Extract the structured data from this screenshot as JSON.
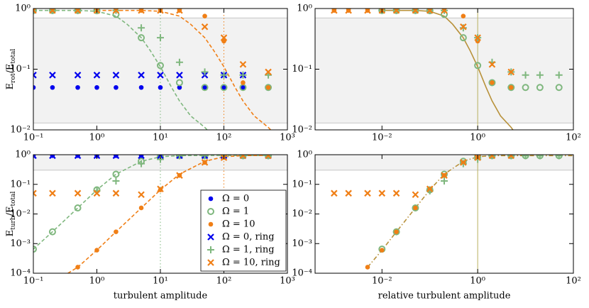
{
  "chart_data": [
    {
      "type": "scatter",
      "log": true,
      "xlim": [
        0.1,
        1000
      ],
      "ylim": [
        0.01,
        1
      ],
      "xticks": [
        {
          "value": 0.1,
          "label": "10⁻¹"
        },
        {
          "value": 1,
          "label": "10⁰"
        },
        {
          "value": 10,
          "label": "10¹"
        },
        {
          "value": 100,
          "label": "10²"
        },
        {
          "value": 1000,
          "label": "10³"
        }
      ],
      "yticks": [
        {
          "value": 0.01,
          "label": "10⁻²"
        },
        {
          "value": 0.1,
          "label": "10⁻¹"
        },
        {
          "value": 1,
          "label": "10⁰"
        }
      ],
      "ylabel": [
        "E",
        "rot",
        "/E",
        "total"
      ],
      "shade": [
        0.013,
        0.7
      ],
      "vlines": [
        {
          "value": 10,
          "color": "#7fb77e",
          "style": "dotted"
        },
        {
          "value": 100,
          "color": "#f07f16",
          "style": "dotted"
        }
      ],
      "series": [
        {
          "marker": "dot",
          "color": "#0000ee",
          "x": [
            0.1,
            0.2,
            0.5,
            1,
            2,
            5,
            10,
            20,
            50,
            100,
            200
          ],
          "values": [
            0.05,
            0.05,
            0.05,
            0.05,
            0.05,
            0.05,
            0.05,
            0.05,
            0.05,
            0.05,
            0.05
          ]
        },
        {
          "marker": "circle",
          "color": "#7fb77e",
          "x": [
            0.1,
            0.2,
            0.5,
            1,
            2,
            5,
            10,
            20,
            50,
            100,
            200,
            500
          ],
          "values": [
            0.93,
            0.93,
            0.93,
            0.92,
            0.8,
            0.33,
            0.115,
            0.06,
            0.05,
            0.05,
            0.05,
            0.05
          ]
        },
        {
          "marker": "dot",
          "color": "#f07f16",
          "x": [
            0.1,
            0.2,
            0.5,
            1,
            2,
            5,
            10,
            20,
            50,
            100,
            200,
            500
          ],
          "values": [
            0.93,
            0.93,
            0.93,
            0.93,
            0.93,
            0.93,
            0.93,
            0.93,
            0.75,
            0.29,
            0.06,
            0.05
          ]
        },
        {
          "marker": "x",
          "color": "#0000ee",
          "x": [
            0.1,
            0.2,
            0.5,
            1,
            2,
            5,
            10,
            20,
            50,
            100,
            200
          ],
          "values": [
            0.08,
            0.08,
            0.08,
            0.08,
            0.08,
            0.08,
            0.08,
            0.08,
            0.08,
            0.08,
            0.08
          ]
        },
        {
          "marker": "plus",
          "color": "#7fb77e",
          "x": [
            0.1,
            0.2,
            0.5,
            1,
            2,
            5,
            10,
            20,
            50,
            100,
            200,
            500
          ],
          "values": [
            0.93,
            0.93,
            0.93,
            0.93,
            0.93,
            0.48,
            0.33,
            0.13,
            0.09,
            0.08,
            0.08,
            0.08
          ]
        },
        {
          "marker": "x",
          "color": "#f07f16",
          "x": [
            0.1,
            0.2,
            0.5,
            1,
            2,
            5,
            10,
            20,
            50,
            100,
            200,
            500
          ],
          "values": [
            0.93,
            0.93,
            0.93,
            0.93,
            0.93,
            0.93,
            0.93,
            0.93,
            0.5,
            0.33,
            0.12,
            0.09
          ]
        }
      ],
      "fits": [
        {
          "color": "#7fb77e",
          "style": "dashed",
          "x": [
            0.1,
            0.5,
            1,
            2,
            3,
            5,
            7,
            10,
            15,
            20,
            30,
            50,
            60
          ],
          "values": [
            0.93,
            0.93,
            0.9,
            0.75,
            0.55,
            0.33,
            0.2,
            0.11,
            0.05,
            0.03,
            0.017,
            0.011,
            0.009
          ]
        },
        {
          "color": "#f07f16",
          "style": "dashed",
          "x": [
            1,
            5,
            10,
            20,
            30,
            50,
            70,
            100,
            150,
            200,
            300,
            500,
            600
          ],
          "values": [
            0.93,
            0.93,
            0.9,
            0.75,
            0.55,
            0.33,
            0.2,
            0.11,
            0.05,
            0.03,
            0.017,
            0.011,
            0.009
          ]
        }
      ]
    },
    {
      "type": "scatter",
      "log": true,
      "xlim": [
        0.0004,
        100
      ],
      "ylim": [
        0.01,
        1
      ],
      "xticks": [
        {
          "value": 0.01,
          "label": "10⁻²"
        },
        {
          "value": 1,
          "label": "10⁰"
        },
        {
          "value": 100,
          "label": "10²"
        }
      ],
      "yticks": [
        {
          "value": 0.01,
          "label": "10⁻²"
        },
        {
          "value": 0.1,
          "label": "10⁻¹"
        },
        {
          "value": 1,
          "label": "10⁰"
        }
      ],
      "shade": [
        0.013,
        0.7
      ],
      "vlines": [
        {
          "value": 1,
          "color": "#b8b060",
          "style": "solid"
        }
      ],
      "series": [
        {
          "marker": "circle",
          "color": "#7fb77e",
          "x": [
            0.01,
            0.02,
            0.05,
            0.1,
            0.2,
            0.5,
            1,
            2,
            5,
            10,
            20,
            50
          ],
          "values": [
            0.93,
            0.93,
            0.93,
            0.92,
            0.8,
            0.33,
            0.115,
            0.06,
            0.05,
            0.05,
            0.05,
            0.05
          ]
        },
        {
          "marker": "dot",
          "color": "#f07f16",
          "x": [
            0.001,
            0.002,
            0.005,
            0.01,
            0.02,
            0.05,
            0.1,
            0.2,
            0.5,
            1,
            2,
            5
          ],
          "values": [
            0.93,
            0.93,
            0.93,
            0.93,
            0.93,
            0.93,
            0.93,
            0.93,
            0.75,
            0.29,
            0.06,
            0.05
          ]
        },
        {
          "marker": "plus",
          "color": "#7fb77e",
          "x": [
            0.01,
            0.02,
            0.05,
            0.1,
            0.2,
            0.5,
            1,
            2,
            5,
            10,
            20,
            50
          ],
          "values": [
            0.93,
            0.93,
            0.93,
            0.93,
            0.93,
            0.48,
            0.33,
            0.13,
            0.09,
            0.08,
            0.08,
            0.08
          ]
        },
        {
          "marker": "x",
          "color": "#f07f16",
          "x": [
            0.001,
            0.002,
            0.005,
            0.01,
            0.02,
            0.05,
            0.1,
            0.2,
            0.5,
            1,
            2,
            5
          ],
          "values": [
            0.93,
            0.93,
            0.93,
            0.93,
            0.93,
            0.93,
            0.93,
            0.93,
            0.5,
            0.33,
            0.12,
            0.09
          ]
        }
      ],
      "fits": [
        {
          "color": "#b8913a",
          "style": "solid",
          "x": [
            0.01,
            0.05,
            0.1,
            0.2,
            0.3,
            0.5,
            0.7,
            1,
            1.5,
            2,
            3,
            5,
            6
          ],
          "values": [
            0.93,
            0.93,
            0.9,
            0.75,
            0.55,
            0.33,
            0.2,
            0.11,
            0.05,
            0.03,
            0.017,
            0.011,
            0.009
          ]
        }
      ]
    },
    {
      "type": "scatter",
      "log": true,
      "xlim": [
        0.1,
        1000
      ],
      "ylim": [
        0.0001,
        1
      ],
      "xticks": [
        {
          "value": 0.1,
          "label": "10⁻¹"
        },
        {
          "value": 1,
          "label": "10⁰"
        },
        {
          "value": 10,
          "label": "10¹"
        },
        {
          "value": 100,
          "label": "10²"
        },
        {
          "value": 1000,
          "label": "10³"
        }
      ],
      "yticks": [
        {
          "value": 0.0001,
          "label": "10⁻⁴"
        },
        {
          "value": 0.001,
          "label": "10⁻³"
        },
        {
          "value": 0.01,
          "label": "10⁻²"
        },
        {
          "value": 0.1,
          "label": "10⁻¹"
        },
        {
          "value": 1,
          "label": "10⁰"
        }
      ],
      "xlabel": "turbulent amplitude",
      "ylabel": [
        "E",
        "turb",
        "/E",
        "total"
      ],
      "legend": "lower right",
      "shade": [
        0.3,
        1
      ],
      "vlines": [
        {
          "value": 10,
          "color": "#7fb77e",
          "style": "dotted"
        },
        {
          "value": 100,
          "color": "#f07f16",
          "style": "dotted"
        }
      ],
      "series": [
        {
          "name": "Ω = 0",
          "marker": "dot",
          "color": "#0000ee",
          "x": [
            0.1,
            0.2,
            0.5,
            1,
            2,
            5,
            10,
            20,
            50,
            100,
            200,
            500
          ],
          "values": [
            0.93,
            0.93,
            0.93,
            0.93,
            0.93,
            0.93,
            0.93,
            0.93,
            0.93,
            0.93,
            0.93,
            0.93
          ]
        },
        {
          "name": "Ω = 1",
          "marker": "circle",
          "color": "#7fb77e",
          "x": [
            0.1,
            0.2,
            0.5,
            1,
            2,
            5,
            10,
            20,
            50,
            100,
            200,
            500
          ],
          "values": [
            0.00065,
            0.0025,
            0.016,
            0.065,
            0.22,
            0.6,
            0.85,
            0.93,
            0.93,
            0.93,
            0.93,
            0.93
          ]
        },
        {
          "name": "Ω = 10",
          "marker": "dot",
          "color": "#f07f16",
          "x": [
            0.5,
            1,
            2,
            5,
            10,
            20,
            50,
            100,
            200,
            500
          ],
          "values": [
            0.00016,
            0.0006,
            0.0025,
            0.016,
            0.065,
            0.2,
            0.55,
            0.8,
            0.93,
            0.93
          ]
        },
        {
          "name": "Ω = 0, ring",
          "marker": "x",
          "color": "#0000ee",
          "x": [
            0.1,
            0.2,
            0.5,
            1,
            2,
            5,
            10,
            20,
            50,
            100,
            200,
            500
          ],
          "values": [
            0.93,
            0.93,
            0.93,
            0.93,
            0.93,
            0.93,
            0.93,
            0.93,
            0.93,
            0.93,
            0.93,
            0.93
          ]
        },
        {
          "name": "Ω = 1, ring",
          "marker": "plus",
          "color": "#7fb77e",
          "x": [
            1,
            2,
            5,
            10,
            20,
            50,
            100,
            200,
            500
          ],
          "values": [
            0.06,
            0.13,
            0.5,
            0.7,
            0.93,
            0.93,
            0.93,
            0.93,
            0.93
          ]
        },
        {
          "name": "Ω = 10, ring",
          "marker": "x",
          "color": "#f07f16",
          "x": [
            0.1,
            0.2,
            0.5,
            1,
            2,
            5,
            10,
            20,
            50,
            100,
            200,
            500
          ],
          "values": [
            0.05,
            0.05,
            0.05,
            0.05,
            0.05,
            0.045,
            0.07,
            0.2,
            0.55,
            0.8,
            0.93,
            0.93
          ]
        }
      ],
      "fits": [
        {
          "color": "#7fb77e",
          "style": "dashed",
          "x": [
            0.1,
            0.2,
            0.5,
            1,
            2,
            5,
            10,
            20,
            50,
            100,
            500
          ],
          "values": [
            0.00065,
            0.0025,
            0.016,
            0.065,
            0.22,
            0.6,
            0.85,
            0.93,
            0.95,
            0.95,
            0.95
          ]
        },
        {
          "color": "#f07f16",
          "style": "dashed",
          "x": [
            0.35,
            0.5,
            1,
            2,
            5,
            10,
            20,
            50,
            100,
            200,
            500
          ],
          "values": [
            0.0001,
            0.00016,
            0.0006,
            0.0025,
            0.016,
            0.065,
            0.22,
            0.6,
            0.85,
            0.93,
            0.95
          ]
        }
      ]
    },
    {
      "type": "scatter",
      "log": true,
      "xlim": [
        0.0004,
        100
      ],
      "ylim": [
        0.0001,
        1
      ],
      "xticks": [
        {
          "value": 0.01,
          "label": "10⁻²"
        },
        {
          "value": 1,
          "label": "10⁰"
        },
        {
          "value": 100,
          "label": "10²"
        }
      ],
      "yticks": [
        {
          "value": 0.0001,
          "label": "10⁻⁴"
        },
        {
          "value": 0.001,
          "label": "10⁻³"
        },
        {
          "value": 0.01,
          "label": "10⁻²"
        },
        {
          "value": 0.1,
          "label": "10⁻¹"
        },
        {
          "value": 1,
          "label": "10⁰"
        }
      ],
      "xlabel": "relative turbulent amplitude",
      "shade": [
        0.3,
        1
      ],
      "vlines": [
        {
          "value": 1,
          "color": "#b8b060",
          "style": "solid"
        }
      ],
      "series": [
        {
          "marker": "circle",
          "color": "#7fb77e",
          "x": [
            0.01,
            0.02,
            0.05,
            0.1,
            0.2,
            0.5,
            1,
            2,
            5,
            10,
            20,
            50
          ],
          "values": [
            0.00065,
            0.0025,
            0.016,
            0.065,
            0.22,
            0.6,
            0.85,
            0.93,
            0.93,
            0.93,
            0.93,
            0.93
          ]
        },
        {
          "marker": "dot",
          "color": "#f07f16",
          "x": [
            0.005,
            0.01,
            0.02,
            0.05,
            0.1,
            0.2,
            0.5,
            1,
            2,
            5
          ],
          "values": [
            0.00016,
            0.0006,
            0.0025,
            0.016,
            0.065,
            0.2,
            0.55,
            0.8,
            0.93,
            0.93
          ]
        },
        {
          "marker": "plus",
          "color": "#7fb77e",
          "x": [
            0.1,
            0.2,
            0.5,
            1,
            2,
            5,
            10,
            20,
            50
          ],
          "values": [
            0.06,
            0.13,
            0.5,
            0.7,
            0.93,
            0.93,
            0.93,
            0.93,
            0.93
          ]
        },
        {
          "marker": "x",
          "color": "#f07f16",
          "x": [
            0.001,
            0.002,
            0.005,
            0.01,
            0.02,
            0.05,
            0.1,
            0.2,
            0.5,
            1,
            2,
            5
          ],
          "values": [
            0.05,
            0.05,
            0.05,
            0.05,
            0.05,
            0.045,
            0.07,
            0.2,
            0.55,
            0.8,
            0.93,
            0.93
          ]
        }
      ],
      "fits": [
        {
          "color": "#b8913a",
          "style": "dashdot",
          "x": [
            0.005,
            0.01,
            0.02,
            0.05,
            0.1,
            0.2,
            0.5,
            1,
            2,
            5,
            10,
            20,
            100
          ],
          "values": [
            0.00016,
            0.0006,
            0.0025,
            0.016,
            0.065,
            0.22,
            0.6,
            0.85,
            0.93,
            0.93,
            0.93,
            0.93,
            0.93
          ]
        }
      ]
    }
  ]
}
